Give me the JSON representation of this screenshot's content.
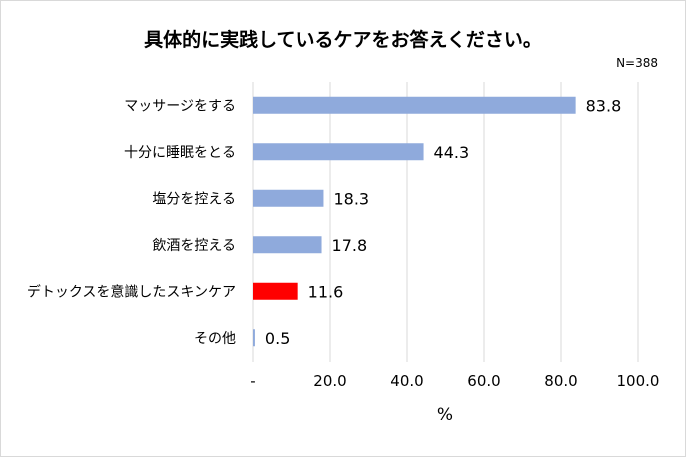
{
  "chart_data": {
    "type": "bar",
    "orientation": "horizontal",
    "title": "具体的に実践しているケアをお答えください。",
    "note": "N=388",
    "xlabel": "%",
    "categories": [
      "マッサージをする",
      "十分に睡眠をとる",
      "塩分を控える",
      "飲酒を控える",
      "デトックスを意識したスキンケア",
      "その他"
    ],
    "values": [
      83.8,
      44.3,
      18.3,
      17.8,
      11.6,
      0.5
    ],
    "value_labels": [
      "83.8",
      "44.3",
      "18.3",
      "17.8",
      "11.6",
      "0.5"
    ],
    "highlight_index": 4,
    "xlim": [
      0,
      100
    ],
    "ticks": [
      0,
      20,
      40,
      60,
      80,
      100
    ],
    "tick_labels": [
      "-",
      "20.0",
      "40.0",
      "60.0",
      "80.0",
      "100.0"
    ],
    "grid": true,
    "colors": {
      "bar": "#8faadc",
      "highlight": "#ff0000",
      "grid": "#d9d9d9"
    }
  }
}
